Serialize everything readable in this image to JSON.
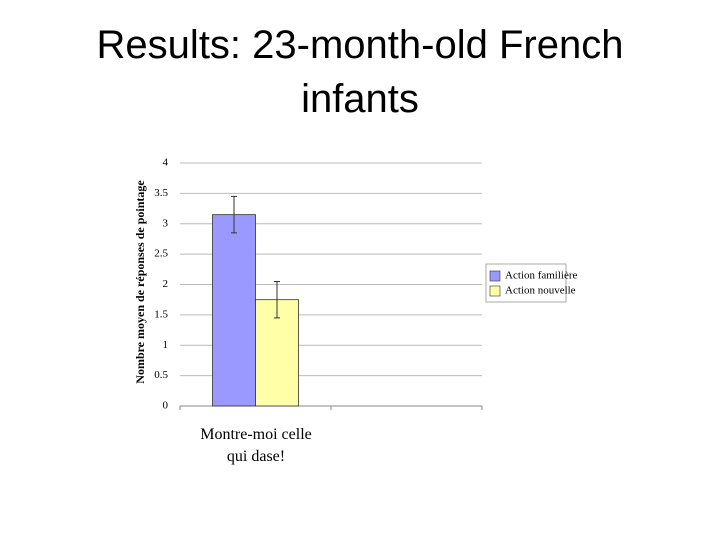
{
  "title": "Results: 23-month-old French infants",
  "chart_data": {
    "type": "bar",
    "ylabel": "Nombre moyen de réponses de pointage",
    "categories": [
      "Montre-moi celle qui dase!",
      null
    ],
    "series": [
      {
        "name": "Action familière",
        "color": "#9999ff",
        "values": [
          3.15,
          null
        ],
        "errors": [
          0.3,
          null
        ]
      },
      {
        "name": "Action nouvelle",
        "color": "#ffffa8",
        "values": [
          1.75,
          null
        ],
        "errors": [
          0.3,
          null
        ]
      }
    ],
    "ylim": [
      0,
      4
    ],
    "yticks": [
      0,
      0.5,
      1,
      1.5,
      2,
      2.5,
      3,
      3.5,
      4
    ],
    "grid": true,
    "legend": "right"
  }
}
